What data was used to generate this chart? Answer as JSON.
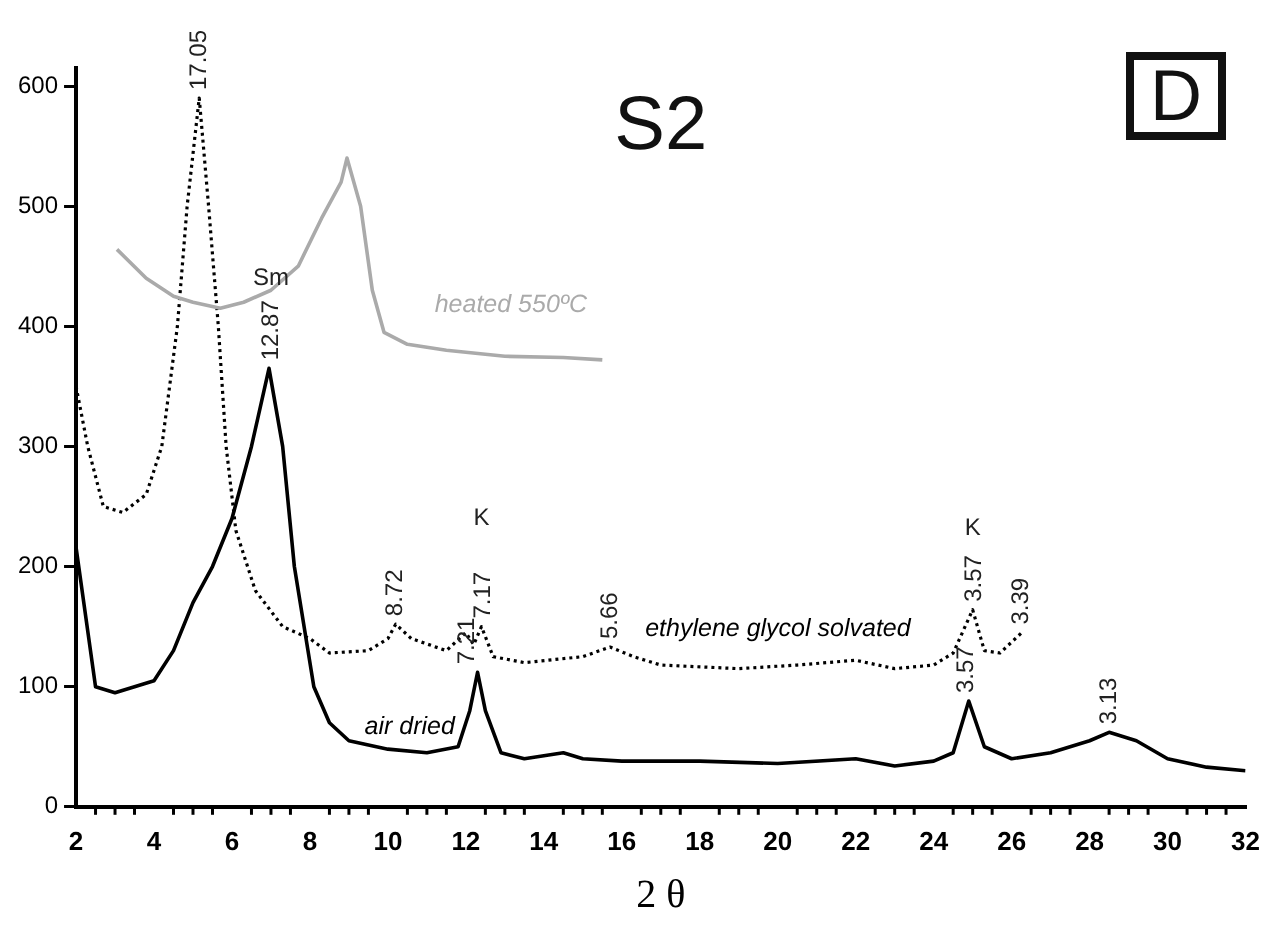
{
  "chart_data": {
    "type": "line",
    "title": "S2",
    "xlabel": "2 θ",
    "xlim": [
      2,
      32
    ],
    "ylim": [
      0,
      615
    ],
    "xticks": [
      2,
      4,
      6,
      8,
      10,
      12,
      14,
      16,
      18,
      20,
      22,
      24,
      26,
      28,
      30,
      32
    ],
    "yticks": [
      0,
      100,
      200,
      300,
      400,
      500,
      600
    ],
    "grid": false,
    "legend": false,
    "marker": "none",
    "series": [
      {
        "name": "heated 550ºC",
        "color": "#aaaaaa",
        "line_style": "solid",
        "x": [
          3.05,
          3.8,
          4.5,
          5,
          5.7,
          6.3,
          7,
          7.7,
          8.3,
          8.8,
          8.95,
          9.3,
          9.6,
          9.9,
          10.5,
          11.5,
          13,
          14.5,
          15.5
        ],
        "values": [
          464,
          440,
          425,
          420,
          415,
          420,
          430,
          450,
          490,
          520,
          540,
          500,
          430,
          395,
          385,
          380,
          375,
          374,
          372
        ]
      },
      {
        "name": "ethylene glycol solvated",
        "color": "#000000",
        "line_style": "dotted",
        "x": [
          2,
          2.3,
          2.7,
          3.2,
          3.8,
          4.2,
          4.6,
          4.85,
          5.16,
          5.4,
          5.65,
          5.85,
          6.1,
          6.6,
          7.3,
          8,
          8.5,
          9.5,
          10,
          10.2,
          10.6,
          11.5,
          12,
          12.2,
          12.4,
          12.7,
          13.5,
          15,
          15.7,
          16.3,
          17,
          19,
          20.5,
          22,
          23,
          24,
          24.5,
          25,
          25.3,
          25.7,
          26.26
        ],
        "values": [
          350,
          300,
          250,
          245,
          260,
          300,
          400,
          500,
          590,
          500,
          400,
          300,
          230,
          180,
          150,
          140,
          128,
          130,
          140,
          152,
          140,
          130,
          145,
          135,
          150,
          125,
          120,
          125,
          133,
          125,
          118,
          115,
          118,
          122,
          115,
          118,
          128,
          164,
          130,
          128,
          145
        ]
      },
      {
        "name": "air dried",
        "color": "#000000",
        "line_style": "solid",
        "x": [
          2,
          2.5,
          3,
          3.5,
          4,
          4.5,
          5,
          5.5,
          6,
          6.5,
          6.95,
          7.3,
          7.6,
          8.1,
          8.5,
          9,
          10,
          11,
          11.8,
          12.1,
          12.3,
          12.5,
          12.9,
          13.5,
          14.5,
          15,
          16,
          18,
          20,
          22,
          23,
          24,
          24.5,
          24.9,
          25.3,
          26,
          27,
          28,
          28.5,
          29.2,
          30,
          31,
          32
        ],
        "values": [
          216,
          100,
          95,
          100,
          105,
          130,
          170,
          200,
          240,
          300,
          365,
          300,
          200,
          100,
          70,
          55,
          48,
          45,
          50,
          80,
          112,
          80,
          45,
          40,
          45,
          40,
          38,
          38,
          36,
          40,
          34,
          38,
          45,
          88,
          50,
          40,
          45,
          55,
          62,
          55,
          40,
          33,
          30
        ]
      }
    ],
    "annotations": [
      {
        "text": "17.05",
        "x": 5.16,
        "y": 590
      },
      {
        "text": "12.87",
        "x": 7.0,
        "y": 365
      },
      {
        "text": "8.72",
        "x": 10.2,
        "y": 152
      },
      {
        "text": "7.21",
        "x": 12.05,
        "y": 112
      },
      {
        "text": "7.17",
        "x": 12.45,
        "y": 150
      },
      {
        "text": "5.66",
        "x": 15.7,
        "y": 133
      },
      {
        "text": "3.57",
        "x": 24.85,
        "y": 88
      },
      {
        "text": "3.57",
        "x": 25.05,
        "y": 164
      },
      {
        "text": "3.39",
        "x": 26.26,
        "y": 145
      },
      {
        "text": "3.13",
        "x": 28.5,
        "y": 62
      },
      "Sm",
      "K",
      "K",
      "D"
    ]
  }
}
